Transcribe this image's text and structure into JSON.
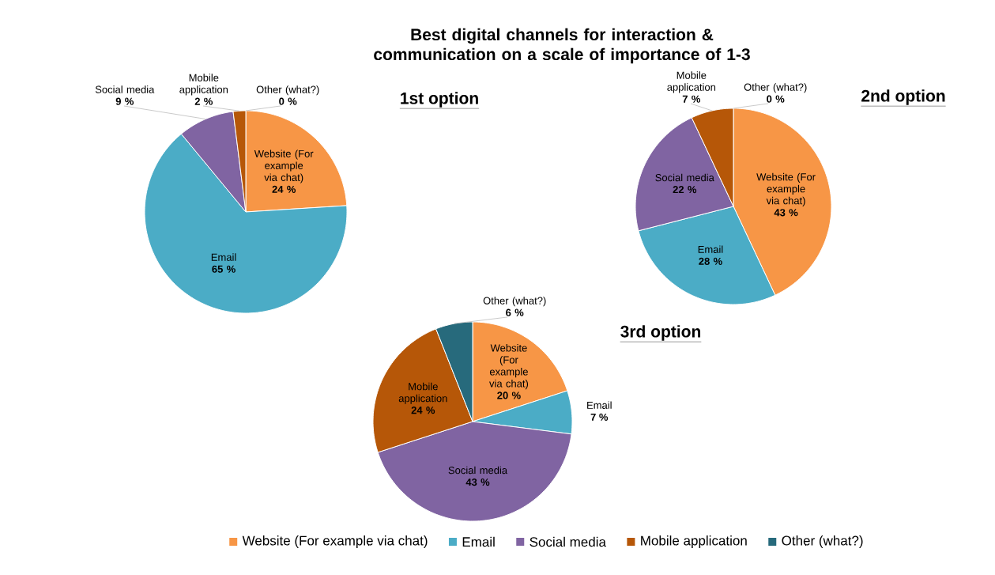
{
  "chart_data": [
    {
      "type": "pie",
      "title": "Best digital channels for interaction & communication on a scale of importance of 1-3",
      "subtitle": "1st option",
      "categories": [
        "Website (For example via chat)",
        "Email",
        "Social media",
        "Mobile application",
        "Other (what?)"
      ],
      "values": [
        24,
        65,
        9,
        2,
        0
      ],
      "value_labels": [
        "24 %",
        "65 %",
        "9 %",
        "2 %",
        "0 %"
      ],
      "colors": [
        "#f79646",
        "#4bacc6",
        "#8064a2",
        "#b65708",
        "#276a7c"
      ]
    },
    {
      "type": "pie",
      "title": "2nd option",
      "categories": [
        "Website (For example via chat)",
        "Email",
        "Social media",
        "Mobile application",
        "Other (what?)"
      ],
      "values": [
        43,
        28,
        22,
        7,
        0
      ],
      "value_labels": [
        "43 %",
        "28 %",
        "22 %",
        "7 %",
        "0 %"
      ],
      "colors": [
        "#f79646",
        "#4bacc6",
        "#8064a2",
        "#b65708",
        "#276a7c"
      ]
    },
    {
      "type": "pie",
      "title": "3rd option",
      "categories": [
        "Website (For example via chat)",
        "Email",
        "Social media",
        "Mobile application",
        "Other (what?)"
      ],
      "values": [
        20,
        7,
        43,
        24,
        6
      ],
      "value_labels": [
        "20 %",
        "7 %",
        "43 %",
        "24 %",
        "6 %"
      ],
      "colors": [
        "#f79646",
        "#4bacc6",
        "#8064a2",
        "#b65708",
        "#276a7c"
      ],
      "legend": "bottom"
    }
  ]
}
